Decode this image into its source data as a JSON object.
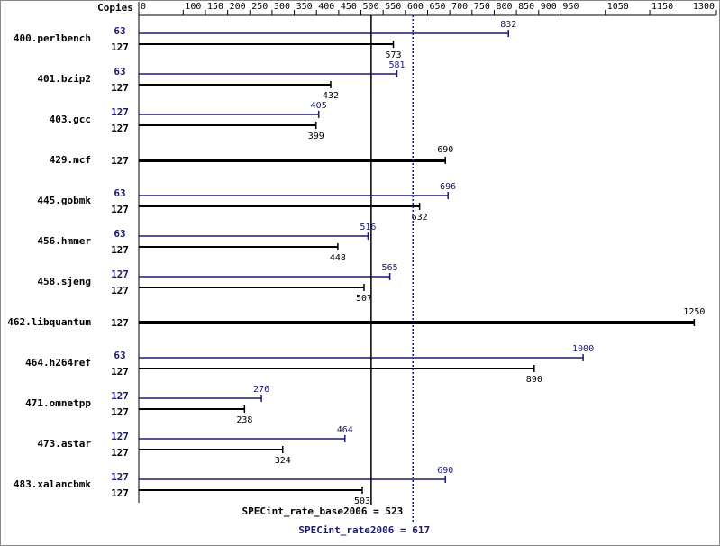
{
  "chart_data": {
    "type": "bar",
    "axis_label": "Copies",
    "categories": [
      "400.perlbench",
      "401.bzip2",
      "403.gcc",
      "429.mcf",
      "445.gobmk",
      "456.hmmer",
      "458.sjeng",
      "462.libquantum",
      "464.h264ref",
      "471.omnetpp",
      "473.astar",
      "483.xalancbmk"
    ],
    "series": [
      {
        "color": "#191970",
        "copies": [
          63,
          63,
          127,
          null,
          63,
          63,
          127,
          null,
          63,
          127,
          127,
          127
        ],
        "values": [
          832,
          581,
          405,
          null,
          696,
          516,
          565,
          null,
          1000,
          276,
          464,
          690
        ]
      },
      {
        "color": "#000000",
        "copies": [
          127,
          127,
          127,
          127,
          127,
          127,
          127,
          127,
          127,
          127,
          127,
          127
        ],
        "values": [
          573,
          432,
          399,
          690,
          632,
          448,
          507,
          1250,
          890,
          238,
          324,
          503
        ]
      }
    ],
    "xlim": [
      0,
      1300
    ],
    "xticks": [
      0,
      100,
      150,
      200,
      250,
      300,
      350,
      400,
      450,
      500,
      550,
      600,
      650,
      700,
      750,
      800,
      850,
      900,
      950,
      1050,
      1150,
      1300
    ],
    "reference_lines": [
      {
        "label": "SPECint_rate_base2006 = 523",
        "value": 523,
        "color": "#000000",
        "dashed": false
      },
      {
        "label": "SPECint_rate2006 = 617",
        "value": 617,
        "color": "#191970",
        "dashed": true
      }
    ]
  }
}
